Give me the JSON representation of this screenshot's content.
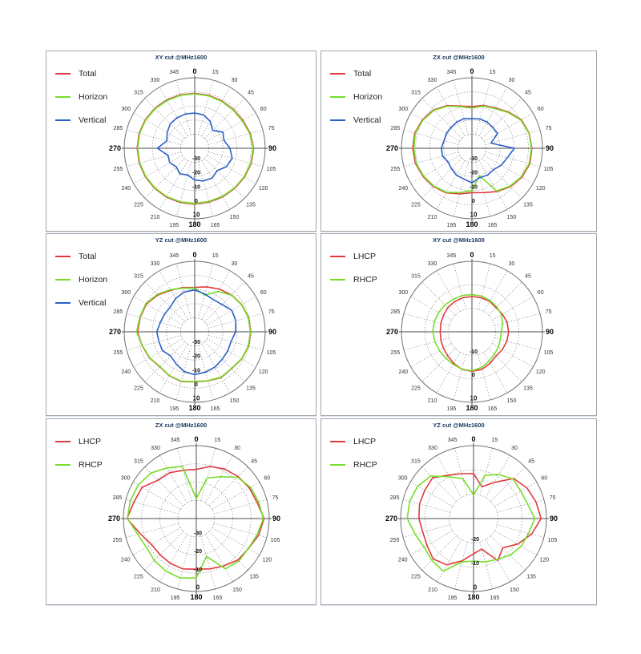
{
  "page": {
    "background": "#ffffff"
  },
  "colors": {
    "red": "#e0393e",
    "green": "#77dd29",
    "blue": "#2b5fc8",
    "grid_dotted": "#909090",
    "outer_ring": "#707070",
    "axis": "#4d4d4d",
    "angular_tick": "#333333",
    "radial_tick": "#111111",
    "title": "#17375e"
  },
  "angular_labels": [
    "0",
    "15",
    "30",
    "45",
    "60",
    "75",
    "90",
    "105",
    "120",
    "135",
    "150",
    "165",
    "180",
    "195",
    "210",
    "225",
    "240",
    "255",
    "270",
    "285",
    "300",
    "315",
    "330",
    "345"
  ],
  "cardinal_labels": [
    "0",
    "90",
    "180",
    "270"
  ],
  "chart_data": [
    {
      "type": "polar_line",
      "title": "XY cut @MHz1600",
      "angles_deg": [
        0,
        15,
        30,
        45,
        60,
        75,
        90,
        105,
        120,
        135,
        150,
        165,
        180,
        195,
        210,
        225,
        240,
        255,
        270,
        285,
        300,
        315,
        330,
        345
      ],
      "radial_axis": {
        "min": -40,
        "max": 10,
        "step": 10,
        "ring_labels": [
          "-30",
          "-20",
          "-10",
          "0",
          "10"
        ],
        "unit": "dB"
      },
      "legend": [
        {
          "label": "Total",
          "color": "#e0393e"
        },
        {
          "label": "Horizon",
          "color": "#77dd29"
        },
        {
          "label": "Vertical",
          "color": "#2b5fc8"
        }
      ],
      "series": [
        {
          "name": "Total",
          "color": "#e0393e",
          "values": [
            -1.0,
            -1.2,
            -1.3,
            -1.2,
            -0.6,
            0.8,
            1.8,
            1.5,
            0.8,
            0.2,
            -0.3,
            -0.6,
            -0.5,
            -0.3,
            0.0,
            0.2,
            0.4,
            0.7,
            0.8,
            0.8,
            0.5,
            0.0,
            -0.5,
            -0.8
          ]
        },
        {
          "name": "Horizon",
          "color": "#77dd29",
          "values": [
            -1.4,
            -1.6,
            -1.7,
            -1.6,
            -1.0,
            0.4,
            1.5,
            1.2,
            0.4,
            -0.2,
            -0.7,
            -1.0,
            -0.9,
            -0.7,
            -0.4,
            -0.2,
            0.0,
            0.3,
            0.5,
            0.4,
            0.1,
            -0.4,
            -0.9,
            -1.2
          ]
        },
        {
          "name": "Vertical",
          "color": "#2b5fc8",
          "values": [
            -15.0,
            -15.5,
            -18.0,
            -22.0,
            -17.0,
            -18.5,
            -15.0,
            -12.5,
            -14.0,
            -17.5,
            -15.5,
            -16.0,
            -17.5,
            -20.5,
            -19.0,
            -21.5,
            -19.5,
            -20.5,
            -13.5,
            -19.5,
            -17.5,
            -15.5,
            -15.0,
            -14.8
          ]
        }
      ]
    },
    {
      "type": "polar_line",
      "title": "ZX cut @MHz1600",
      "angles_deg": [
        0,
        15,
        30,
        45,
        60,
        75,
        90,
        105,
        120,
        135,
        150,
        165,
        180,
        195,
        210,
        225,
        240,
        255,
        270,
        285,
        300,
        315,
        330,
        345
      ],
      "radial_axis": {
        "min": -40,
        "max": 10,
        "step": 10,
        "ring_labels": [
          "-30",
          "-20",
          "-10",
          "0",
          "10"
        ],
        "unit": "dB"
      },
      "legend": [
        {
          "label": "Total",
          "color": "#e0393e"
        },
        {
          "label": "Horizon",
          "color": "#77dd29"
        },
        {
          "label": "Vertical",
          "color": "#2b5fc8"
        }
      ],
      "series": [
        {
          "name": "Total",
          "color": "#e0393e",
          "values": [
            -10.5,
            -8.5,
            -7.0,
            -3.5,
            0.5,
            2.0,
            2.5,
            2.5,
            1.0,
            -1.5,
            -4.5,
            -7.5,
            -8.5,
            -6.5,
            -3.5,
            -1.5,
            0.0,
            1.5,
            2.0,
            2.0,
            0.5,
            -1.5,
            -5.0,
            -9.0
          ]
        },
        {
          "name": "Horizon",
          "color": "#77dd29",
          "values": [
            -11.5,
            -9.0,
            -7.5,
            -4.0,
            0.0,
            1.8,
            2.2,
            2.0,
            0.5,
            -2.0,
            -5.0,
            -20.0,
            -10.0,
            -7.5,
            -4.0,
            -2.0,
            -0.5,
            1.0,
            1.2,
            1.5,
            0.0,
            -2.0,
            -5.5,
            -9.5
          ]
        },
        {
          "name": "Vertical",
          "color": "#2b5fc8",
          "values": [
            -19.0,
            -18.5,
            -18.5,
            -19.0,
            -19.0,
            -26.0,
            -10.0,
            -14.0,
            -16.0,
            -18.5,
            -18.0,
            -18.5,
            -15.5,
            -17.5,
            -18.0,
            -19.5,
            -20.5,
            -18.5,
            -18.3,
            -19.5,
            -19.0,
            -19.0,
            -18.5,
            -18.3
          ]
        }
      ]
    },
    {
      "type": "polar_line",
      "title": "YZ cut @MHz1600",
      "angles_deg": [
        0,
        15,
        30,
        45,
        60,
        75,
        90,
        105,
        120,
        135,
        150,
        165,
        180,
        195,
        210,
        225,
        240,
        255,
        270,
        285,
        300,
        315,
        330,
        345
      ],
      "radial_axis": {
        "min": -40,
        "max": 10,
        "step": 10,
        "ring_labels": [
          "-30",
          "-20",
          "-10",
          "0",
          "10"
        ],
        "unit": "dB"
      },
      "legend": [
        {
          "label": "Total",
          "color": "#e0393e"
        },
        {
          "label": "Horizon",
          "color": "#77dd29"
        },
        {
          "label": "Vertical",
          "color": "#2b5fc8"
        }
      ],
      "series": [
        {
          "name": "Total",
          "color": "#e0393e",
          "values": [
            -8.5,
            -7.0,
            -5.0,
            -3.0,
            -1.5,
            -0.5,
            -0.3,
            -0.5,
            -1.5,
            -3.0,
            -2.5,
            -4.0,
            -4.5,
            -3.5,
            -4.0,
            -5.0,
            -3.0,
            -1.5,
            0.5,
            0.0,
            -0.5,
            -3.0,
            -6.0,
            -7.5
          ]
        },
        {
          "name": "Horizon",
          "color": "#77dd29",
          "values": [
            -9.0,
            -13.0,
            -7.0,
            -3.2,
            -1.7,
            -0.7,
            -0.5,
            -0.7,
            -1.7,
            -3.2,
            -2.8,
            -4.2,
            -4.7,
            -3.7,
            -4.2,
            -5.2,
            -3.2,
            -1.7,
            1.2,
            0.3,
            0.0,
            -2.5,
            -5.5,
            -8.0
          ]
        },
        {
          "name": "Vertical",
          "color": "#2b5fc8",
          "values": [
            -10.3,
            -12.3,
            -13.6,
            -12.6,
            -9.6,
            -9.8,
            -11.0,
            -13.3,
            -13.0,
            -12.4,
            -11.2,
            -10.5,
            -9.6,
            -10.9,
            -13.7,
            -15.8,
            -13.5,
            -13.7,
            -13.1,
            -14.7,
            -15.2,
            -15.3,
            -12.8,
            -10.9
          ]
        }
      ]
    },
    {
      "type": "polar_line",
      "title": "XY cut @MHz1600",
      "angles_deg": [
        0,
        15,
        30,
        45,
        60,
        75,
        90,
        105,
        120,
        135,
        150,
        165,
        180,
        195,
        210,
        225,
        240,
        255,
        270,
        285,
        300,
        315,
        330,
        345
      ],
      "radial_axis": {
        "min": -20,
        "max": 10,
        "step": 10,
        "ring_labels": [
          "-10",
          "0",
          "10"
        ],
        "unit": "dB"
      },
      "legend": [
        {
          "label": "LHCP",
          "color": "#e0393e"
        },
        {
          "label": "RHCP",
          "color": "#77dd29"
        }
      ],
      "series": [
        {
          "name": "LHCP",
          "color": "#e0393e",
          "values": [
            -5.0,
            -5.0,
            -5.0,
            -5.5,
            -5.0,
            -4.5,
            -4.4,
            -4.6,
            -5.0,
            -5.5,
            -4.5,
            -3.5,
            -3.2,
            -3.5,
            -4.5,
            -5.5,
            -6.0,
            -6.3,
            -6.5,
            -6.3,
            -6.0,
            -5.5,
            -5.2,
            -5.0
          ]
        },
        {
          "name": "RHCP",
          "color": "#77dd29",
          "values": [
            -4.1,
            -4.3,
            -4.6,
            -5.0,
            -5.5,
            -6.5,
            -7.5,
            -7.5,
            -7.0,
            -6.5,
            -5.5,
            -4.3,
            -3.4,
            -3.6,
            -4.0,
            -4.2,
            -4.0,
            -3.7,
            -3.3,
            -3.4,
            -3.6,
            -3.8,
            -4.0,
            -4.0
          ]
        }
      ]
    },
    {
      "type": "polar_line",
      "title": "ZX cut @MHz1600",
      "angles_deg": [
        0,
        15,
        30,
        45,
        60,
        75,
        90,
        105,
        120,
        135,
        150,
        165,
        180,
        195,
        210,
        225,
        240,
        255,
        270,
        285,
        300,
        315,
        330,
        345
      ],
      "radial_axis": {
        "min": -40,
        "max": 0,
        "step": 10,
        "ring_labels": [
          "-30",
          "-20",
          "-10",
          "0"
        ],
        "unit": "dB"
      },
      "legend": [
        {
          "label": "LHCP",
          "color": "#e0393e"
        },
        {
          "label": "RHCP",
          "color": "#77dd29"
        }
      ],
      "series": [
        {
          "name": "LHCP",
          "color": "#e0393e",
          "values": [
            -13.0,
            -10.4,
            -8.7,
            -7.5,
            -6.4,
            -5.5,
            -2.8,
            -4.6,
            -7.0,
            -7.8,
            -10.0,
            -11.4,
            -12.2,
            -11.4,
            -11.6,
            -11.9,
            -11.6,
            -8.1,
            -2.0,
            -4.6,
            -5.7,
            -10.3,
            -10.9,
            -12.6
          ]
        },
        {
          "name": "RHCP",
          "color": "#77dd29",
          "values": [
            -29.0,
            -17.0,
            -13.5,
            -8.0,
            -5.7,
            -4.6,
            -3.2,
            -5.5,
            -7.1,
            -7.0,
            -8.1,
            -18.5,
            -7.5,
            -6.2,
            -6.7,
            -7.4,
            -8.4,
            -6.7,
            -2.2,
            -2.5,
            -3.2,
            -4.7,
            -7.9,
            -10.4
          ]
        }
      ]
    },
    {
      "type": "polar_line",
      "title": "YZ cut @MHz1600",
      "angles_deg": [
        0,
        15,
        30,
        45,
        60,
        75,
        90,
        105,
        120,
        135,
        150,
        165,
        180,
        195,
        210,
        225,
        240,
        255,
        270,
        285,
        300,
        315,
        330,
        345
      ],
      "radial_axis": {
        "min": -30,
        "max": 0,
        "step": 10,
        "ring_labels": [
          "-20",
          "-10",
          "0"
        ],
        "unit": "dB"
      },
      "legend": [
        {
          "label": "LHCP",
          "color": "#e0393e"
        },
        {
          "label": "RHCP",
          "color": "#77dd29"
        }
      ],
      "series": [
        {
          "name": "LHCP",
          "color": "#e0393e",
          "values": [
            -11.5,
            -16.5,
            -12.8,
            -6.7,
            -4.7,
            -3.4,
            -2.2,
            -5.3,
            -9.0,
            -13.0,
            -10.0,
            -17.0,
            -15.5,
            -12.0,
            -8.0,
            -6.5,
            -7.9,
            -8.4,
            -7.5,
            -7.0,
            -6.8,
            -6.2,
            -9.4,
            -10.9
          ]
        },
        {
          "name": "RHCP",
          "color": "#77dd29",
          "values": [
            -20.3,
            -11.6,
            -9.1,
            -7.0,
            -7.5,
            -7.0,
            -4.8,
            -6.6,
            -7.3,
            -8.7,
            -10.6,
            -11.5,
            -12.5,
            -11.5,
            -5.0,
            -5.7,
            -6.5,
            -5.1,
            -2.7,
            -2.8,
            -3.4,
            -5.2,
            -10.2,
            -13.0
          ]
        }
      ]
    }
  ]
}
